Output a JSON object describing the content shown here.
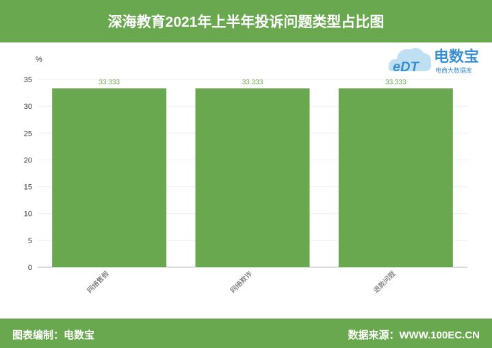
{
  "header": {
    "title": "深海教育2021年上半年投诉问题类型占比图"
  },
  "footer": {
    "left": "图表编制：电数宝",
    "right": "数据来源：WWW.100EC.CN"
  },
  "logo": {
    "text": "电数宝",
    "subtext": "电商大数据库",
    "mark": "eDT"
  },
  "colors": {
    "header": "#6aa84f",
    "bar": "#6aa84f",
    "label": "#6aa84f"
  },
  "chart_data": {
    "type": "bar",
    "categories": [
      "网络售假",
      "网络欺诈",
      "退款问题"
    ],
    "values": [
      33.333,
      33.333,
      33.333
    ],
    "ylabel": "%",
    "ylim": [
      0,
      35
    ],
    "yticks": [
      0,
      5,
      10,
      15,
      20,
      25,
      30,
      35
    ],
    "grid": true,
    "data_labels": [
      "33.333",
      "33.333",
      "33.333"
    ]
  }
}
